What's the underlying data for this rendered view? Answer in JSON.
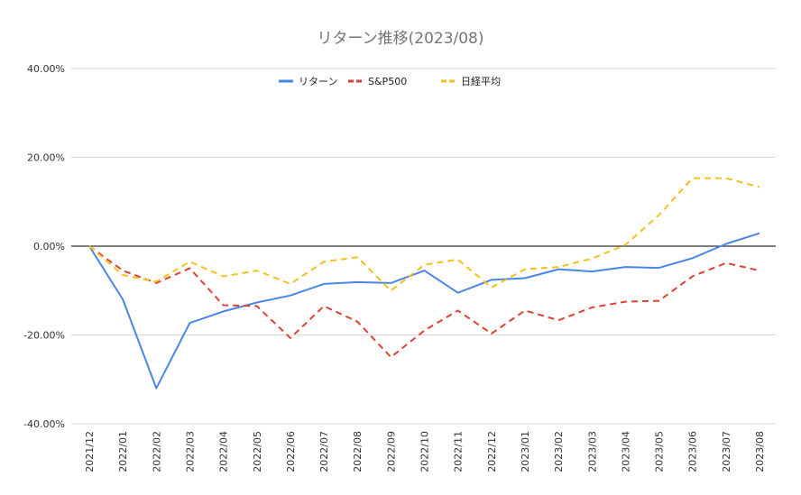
{
  "chart_data": {
    "type": "line",
    "title": "リターン推移(2023/08)",
    "xlabel": "",
    "ylabel": "",
    "ylim": [
      -0.4,
      0.4
    ],
    "yticks": [
      "40.00%",
      "20.00%",
      "0.00%",
      "-20.00%",
      "-40.00%"
    ],
    "ytick_values": [
      0.4,
      0.2,
      0.0,
      -0.2,
      -0.4
    ],
    "grid": true,
    "legend_position": "top",
    "categories": [
      "2021/12",
      "2022/01",
      "2022/02",
      "2022/03",
      "2022/04",
      "2022/05",
      "2022/06",
      "2022/07",
      "2022/08",
      "2022/09",
      "2022/10",
      "2022/11",
      "2022/12",
      "2023/01",
      "2023/02",
      "2023/03",
      "2023/04",
      "2023/05",
      "2023/06",
      "2023/07",
      "2023/08"
    ],
    "series": [
      {
        "name": "リターン",
        "color": "#4a86e8",
        "dash": "solid",
        "values": [
          0.0,
          -0.12,
          -0.32,
          -0.173,
          -0.147,
          -0.127,
          -0.111,
          -0.085,
          -0.081,
          -0.083,
          -0.055,
          -0.105,
          -0.076,
          -0.072,
          -0.052,
          -0.057,
          -0.047,
          -0.049,
          -0.027,
          0.005,
          0.029
        ]
      },
      {
        "name": "S&P500",
        "color": "#dd4132",
        "dash": "dashed",
        "values": [
          0.0,
          -0.055,
          -0.083,
          -0.05,
          -0.133,
          -0.135,
          -0.207,
          -0.135,
          -0.17,
          -0.25,
          -0.19,
          -0.145,
          -0.197,
          -0.145,
          -0.167,
          -0.138,
          -0.125,
          -0.123,
          -0.068,
          -0.038,
          -0.055
        ]
      },
      {
        "name": "日経平均",
        "color": "#f4c01c",
        "dash": "dashed",
        "values": [
          0.0,
          -0.065,
          -0.08,
          -0.035,
          -0.068,
          -0.055,
          -0.085,
          -0.035,
          -0.025,
          -0.1,
          -0.042,
          -0.03,
          -0.093,
          -0.052,
          -0.047,
          -0.028,
          0.003,
          0.07,
          0.153,
          0.153,
          0.133
        ]
      }
    ]
  }
}
